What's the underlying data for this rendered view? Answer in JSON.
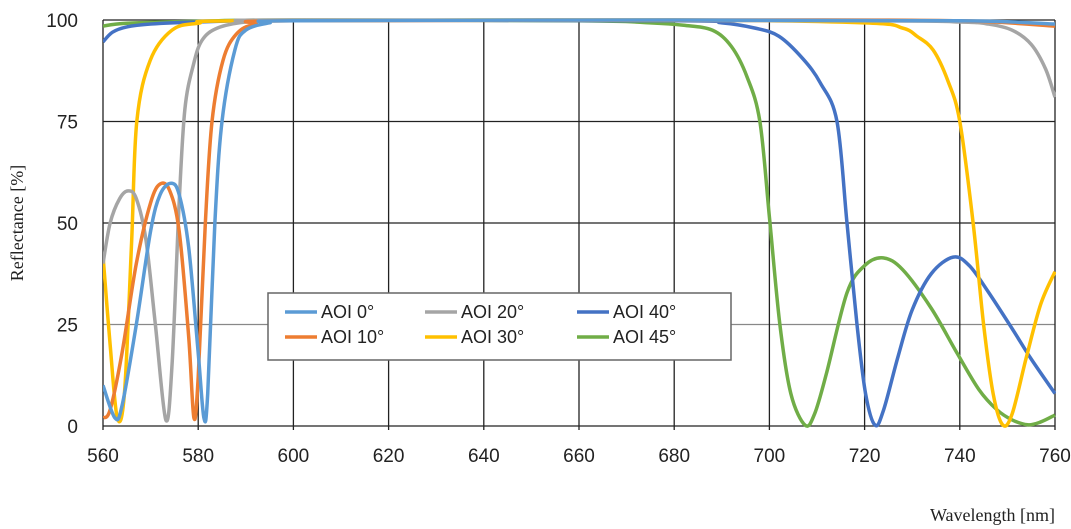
{
  "chart_data": {
    "type": "line",
    "title": "",
    "xlabel": "Wavelength [nm]",
    "ylabel": "Reflectance [%]",
    "xlim": [
      560,
      760
    ],
    "ylim": [
      0,
      100
    ],
    "xticks": [
      "560",
      "580",
      "600",
      "620",
      "640",
      "660",
      "680",
      "700",
      "720",
      "740",
      "760"
    ],
    "yticks": [
      "0",
      "25",
      "50",
      "75",
      "100"
    ],
    "grid": true,
    "legend_placement": "lower-center",
    "series": [
      {
        "name": "AOI 0°",
        "color": "#5B9BD5",
        "points": [
          [
            560,
            10
          ],
          [
            562.5,
            2
          ],
          [
            564,
            5
          ],
          [
            567,
            25
          ],
          [
            570,
            48
          ],
          [
            572,
            57
          ],
          [
            574.3,
            59.8
          ],
          [
            576,
            57
          ],
          [
            578,
            44
          ],
          [
            580,
            18
          ],
          [
            581.2,
            2
          ],
          [
            582,
            8
          ],
          [
            583.5,
            50
          ],
          [
            585,
            75
          ],
          [
            587.7,
            92.6
          ],
          [
            590,
            97.5
          ],
          [
            595,
            99.3
          ],
          [
            600,
            99.8
          ],
          [
            680,
            100
          ],
          [
            740,
            99.8
          ],
          [
            760,
            99
          ]
        ]
      },
      {
        "name": "AOI 10°",
        "color": "#ED7D31",
        "points": [
          [
            560,
            2
          ],
          [
            561.5,
            4
          ],
          [
            564,
            18
          ],
          [
            567,
            40
          ],
          [
            570,
            55
          ],
          [
            572,
            59.6
          ],
          [
            574,
            58
          ],
          [
            576,
            48
          ],
          [
            578,
            22
          ],
          [
            579.1,
            2
          ],
          [
            580,
            12
          ],
          [
            581.5,
            50
          ],
          [
            582.9,
            75
          ],
          [
            585.2,
            90
          ],
          [
            588,
            96.5
          ],
          [
            592,
            99
          ],
          [
            600,
            99.8
          ],
          [
            700,
            100
          ],
          [
            740,
            99.8
          ],
          [
            760,
            98.5
          ]
        ]
      },
      {
        "name": "AOI 20°",
        "color": "#A5A5A5",
        "points": [
          [
            560,
            40
          ],
          [
            561.5,
            50
          ],
          [
            563.5,
            56
          ],
          [
            565.3,
            57.9
          ],
          [
            567,
            56
          ],
          [
            569,
            46
          ],
          [
            571,
            25
          ],
          [
            573.2,
            1.5
          ],
          [
            574.5,
            15
          ],
          [
            576,
            55
          ],
          [
            577.2,
            78
          ],
          [
            579,
            89
          ],
          [
            580.8,
            95
          ],
          [
            584,
            98
          ],
          [
            590,
            99.5
          ],
          [
            600,
            100
          ],
          [
            720,
            99.8
          ],
          [
            740,
            99.5
          ],
          [
            746,
            99
          ],
          [
            751,
            97.5
          ],
          [
            755,
            94
          ],
          [
            758,
            88
          ],
          [
            760,
            81
          ]
        ]
      },
      {
        "name": "AOI 30°",
        "color": "#FFC000",
        "points": [
          [
            560,
            42
          ],
          [
            561.5,
            20
          ],
          [
            563,
            2
          ],
          [
            564.5,
            8
          ],
          [
            566,
            45
          ],
          [
            567.1,
            75
          ],
          [
            569.9,
            90
          ],
          [
            574.5,
            97.5
          ],
          [
            580,
            99.2
          ],
          [
            590,
            99.8
          ],
          [
            680,
            100
          ],
          [
            720,
            99.3
          ],
          [
            728,
            98
          ],
          [
            731,
            96
          ],
          [
            734.4,
            92.6
          ],
          [
            737.5,
            85
          ],
          [
            740,
            75
          ],
          [
            742.8,
            50
          ],
          [
            745,
            25
          ],
          [
            747,
            8
          ],
          [
            749,
            0.3
          ],
          [
            751,
            3
          ],
          [
            754,
            17
          ],
          [
            757,
            30
          ],
          [
            760,
            38
          ]
        ]
      },
      {
        "name": "AOI 40°",
        "color": "#4472C4",
        "points": [
          [
            560,
            94.6
          ],
          [
            562,
            97
          ],
          [
            565,
            98.3
          ],
          [
            570,
            99
          ],
          [
            580,
            99.5
          ],
          [
            600,
            99.9
          ],
          [
            680,
            99.8
          ],
          [
            690,
            99.3
          ],
          [
            697,
            98
          ],
          [
            702,
            96
          ],
          [
            707,
            90.5
          ],
          [
            710.7,
            84.5
          ],
          [
            714.2,
            75
          ],
          [
            716.3,
            50
          ],
          [
            718.4,
            25
          ],
          [
            720.2,
            8
          ],
          [
            722.2,
            0.2
          ],
          [
            724,
            4
          ],
          [
            727,
            17
          ],
          [
            730,
            28.6
          ],
          [
            734,
            37.5
          ],
          [
            738.6,
            41.6
          ],
          [
            742,
            39.5
          ],
          [
            746,
            33
          ],
          [
            751.2,
            23.6
          ],
          [
            755,
            16.5
          ],
          [
            760,
            8
          ]
        ]
      },
      {
        "name": "AOI 45°",
        "color": "#70AD47",
        "points": [
          [
            560,
            98.5
          ],
          [
            565,
            99.2
          ],
          [
            580,
            99.7
          ],
          [
            600,
            100
          ],
          [
            660,
            99.8
          ],
          [
            675,
            99.3
          ],
          [
            682,
            98.7
          ],
          [
            688,
            97.5
          ],
          [
            692,
            93.5
          ],
          [
            695.3,
            86
          ],
          [
            698,
            75
          ],
          [
            700,
            51.5
          ],
          [
            702.2,
            25
          ],
          [
            704.5,
            8
          ],
          [
            707.5,
            0.2
          ],
          [
            709.5,
            3
          ],
          [
            712,
            13
          ],
          [
            716.3,
            32.8
          ],
          [
            720,
            39.5
          ],
          [
            723.9,
            41.4
          ],
          [
            728,
            38.5
          ],
          [
            734,
            29
          ],
          [
            739.4,
            18
          ],
          [
            744,
            9
          ],
          [
            747.8,
            4
          ],
          [
            751,
            1.5
          ],
          [
            754.3,
            0.3
          ],
          [
            757,
            1
          ],
          [
            760,
            2.7
          ]
        ]
      }
    ]
  }
}
